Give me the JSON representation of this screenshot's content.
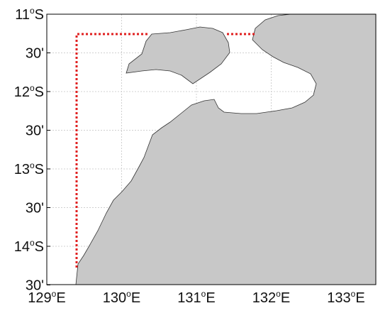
{
  "axes": {
    "lat_labels": [
      {
        "value": "11",
        "degree": "o",
        "hemisphere": "S"
      },
      {
        "text": "30'"
      },
      {
        "value": "12",
        "degree": "o",
        "hemisphere": "S"
      },
      {
        "text": "30'"
      },
      {
        "value": "13",
        "degree": "o",
        "hemisphere": "S"
      },
      {
        "text": "30'"
      },
      {
        "value": "14",
        "degree": "o",
        "hemisphere": "S"
      },
      {
        "text": "30'"
      }
    ],
    "lon_labels": [
      {
        "value": "129",
        "degree": "o",
        "hemisphere": "E"
      },
      {
        "value": "130",
        "degree": "o",
        "hemisphere": "E"
      },
      {
        "value": "131",
        "degree": "o",
        "hemisphere": "E"
      },
      {
        "value": "132",
        "degree": "o",
        "hemisphere": "E"
      },
      {
        "value": "133",
        "degree": "o",
        "hemisphere": "E"
      }
    ]
  }
}
